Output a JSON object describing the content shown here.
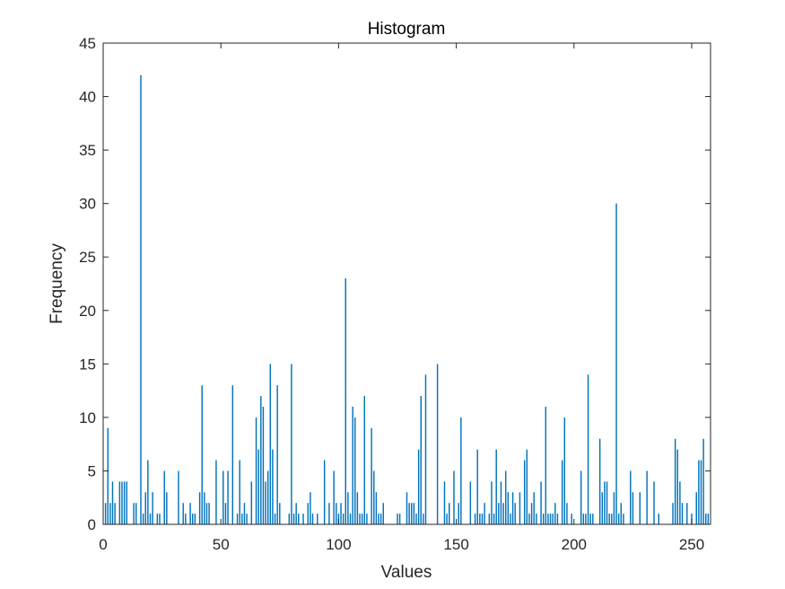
{
  "chart_data": {
    "type": "bar",
    "title": "Histogram",
    "xlabel": "Values",
    "ylabel": "Frequency",
    "xlim": [
      0,
      258
    ],
    "ylim": [
      0,
      45
    ],
    "xticks": [
      0,
      50,
      100,
      150,
      200,
      250
    ],
    "yticks": [
      0,
      5,
      10,
      15,
      20,
      25,
      30,
      35,
      40,
      45
    ],
    "bar_color": "#0072BD",
    "grid": false,
    "box": true,
    "x": [
      1,
      2,
      3,
      4,
      5,
      7,
      8,
      9,
      10,
      13,
      14,
      16,
      17,
      18,
      19,
      20,
      21,
      23,
      24,
      26,
      27,
      32,
      34,
      35,
      37,
      38,
      39,
      41,
      42,
      43,
      44,
      45,
      48,
      51,
      52,
      53,
      55,
      57,
      58,
      59,
      60,
      61,
      63,
      65,
      66,
      67,
      68,
      69,
      70,
      71,
      72,
      73,
      74,
      75,
      79,
      80,
      81,
      82,
      83,
      85,
      87,
      88,
      89,
      91,
      94,
      96,
      98,
      99,
      100,
      101,
      102,
      103,
      104,
      105,
      106,
      107,
      108,
      109,
      110,
      111,
      112,
      114,
      115,
      116,
      117,
      118,
      119,
      125,
      126,
      129,
      130,
      131,
      132,
      133,
      134,
      135,
      136,
      137,
      142,
      145,
      146,
      147,
      149,
      151,
      152,
      156,
      158,
      159,
      160,
      161,
      162,
      164,
      165,
      166,
      167,
      168,
      169,
      170,
      171,
      172,
      173,
      174,
      175,
      177,
      179,
      180,
      181,
      182,
      183,
      184,
      186,
      187,
      188,
      189,
      190,
      191,
      192,
      193,
      195,
      196,
      197,
      199,
      203,
      204,
      205,
      206,
      207,
      208,
      211,
      212,
      213,
      214,
      215,
      216,
      217,
      218,
      219,
      220,
      221,
      224,
      225,
      228,
      231,
      234,
      236,
      242,
      243,
      244,
      245,
      246,
      248,
      250,
      252,
      253,
      254,
      255,
      256,
      257
    ],
    "values": [
      2,
      9,
      2,
      4,
      2,
      4,
      4,
      4,
      4,
      2,
      2,
      42,
      1,
      3,
      6,
      1,
      3,
      1,
      1,
      5,
      3,
      5,
      2,
      1,
      2,
      1,
      1,
      3,
      13,
      3,
      2,
      2,
      6,
      5,
      2,
      5,
      13,
      1,
      6,
      1,
      2,
      1,
      4,
      10,
      7,
      12,
      11,
      4,
      5,
      15,
      7,
      1,
      13,
      2,
      1,
      15,
      1,
      2,
      1,
      1,
      2,
      3,
      1,
      1,
      6,
      2,
      5,
      2,
      1,
      2,
      1,
      23,
      3,
      1,
      11,
      10,
      3,
      1,
      1,
      12,
      1,
      9,
      5,
      3,
      1,
      1,
      2,
      1,
      1,
      3,
      2,
      2,
      2,
      1,
      7,
      12,
      1,
      14,
      15,
      4,
      1,
      2,
      5,
      2,
      10,
      4,
      1,
      7,
      1,
      1,
      2,
      1,
      4,
      1,
      7,
      2,
      4,
      2,
      5,
      3,
      1,
      3,
      2,
      3,
      6,
      7,
      1,
      2,
      3,
      1,
      4,
      1,
      11,
      1,
      1,
      1,
      2,
      1,
      6,
      10,
      2,
      1,
      5,
      1,
      1,
      14,
      1,
      1,
      8,
      3,
      4,
      4,
      1,
      1,
      3,
      30,
      1,
      2,
      1,
      5,
      3,
      3,
      5,
      4,
      1,
      2,
      8,
      7,
      4,
      2,
      2,
      1,
      3,
      6,
      6,
      8,
      1,
      1
    ]
  }
}
